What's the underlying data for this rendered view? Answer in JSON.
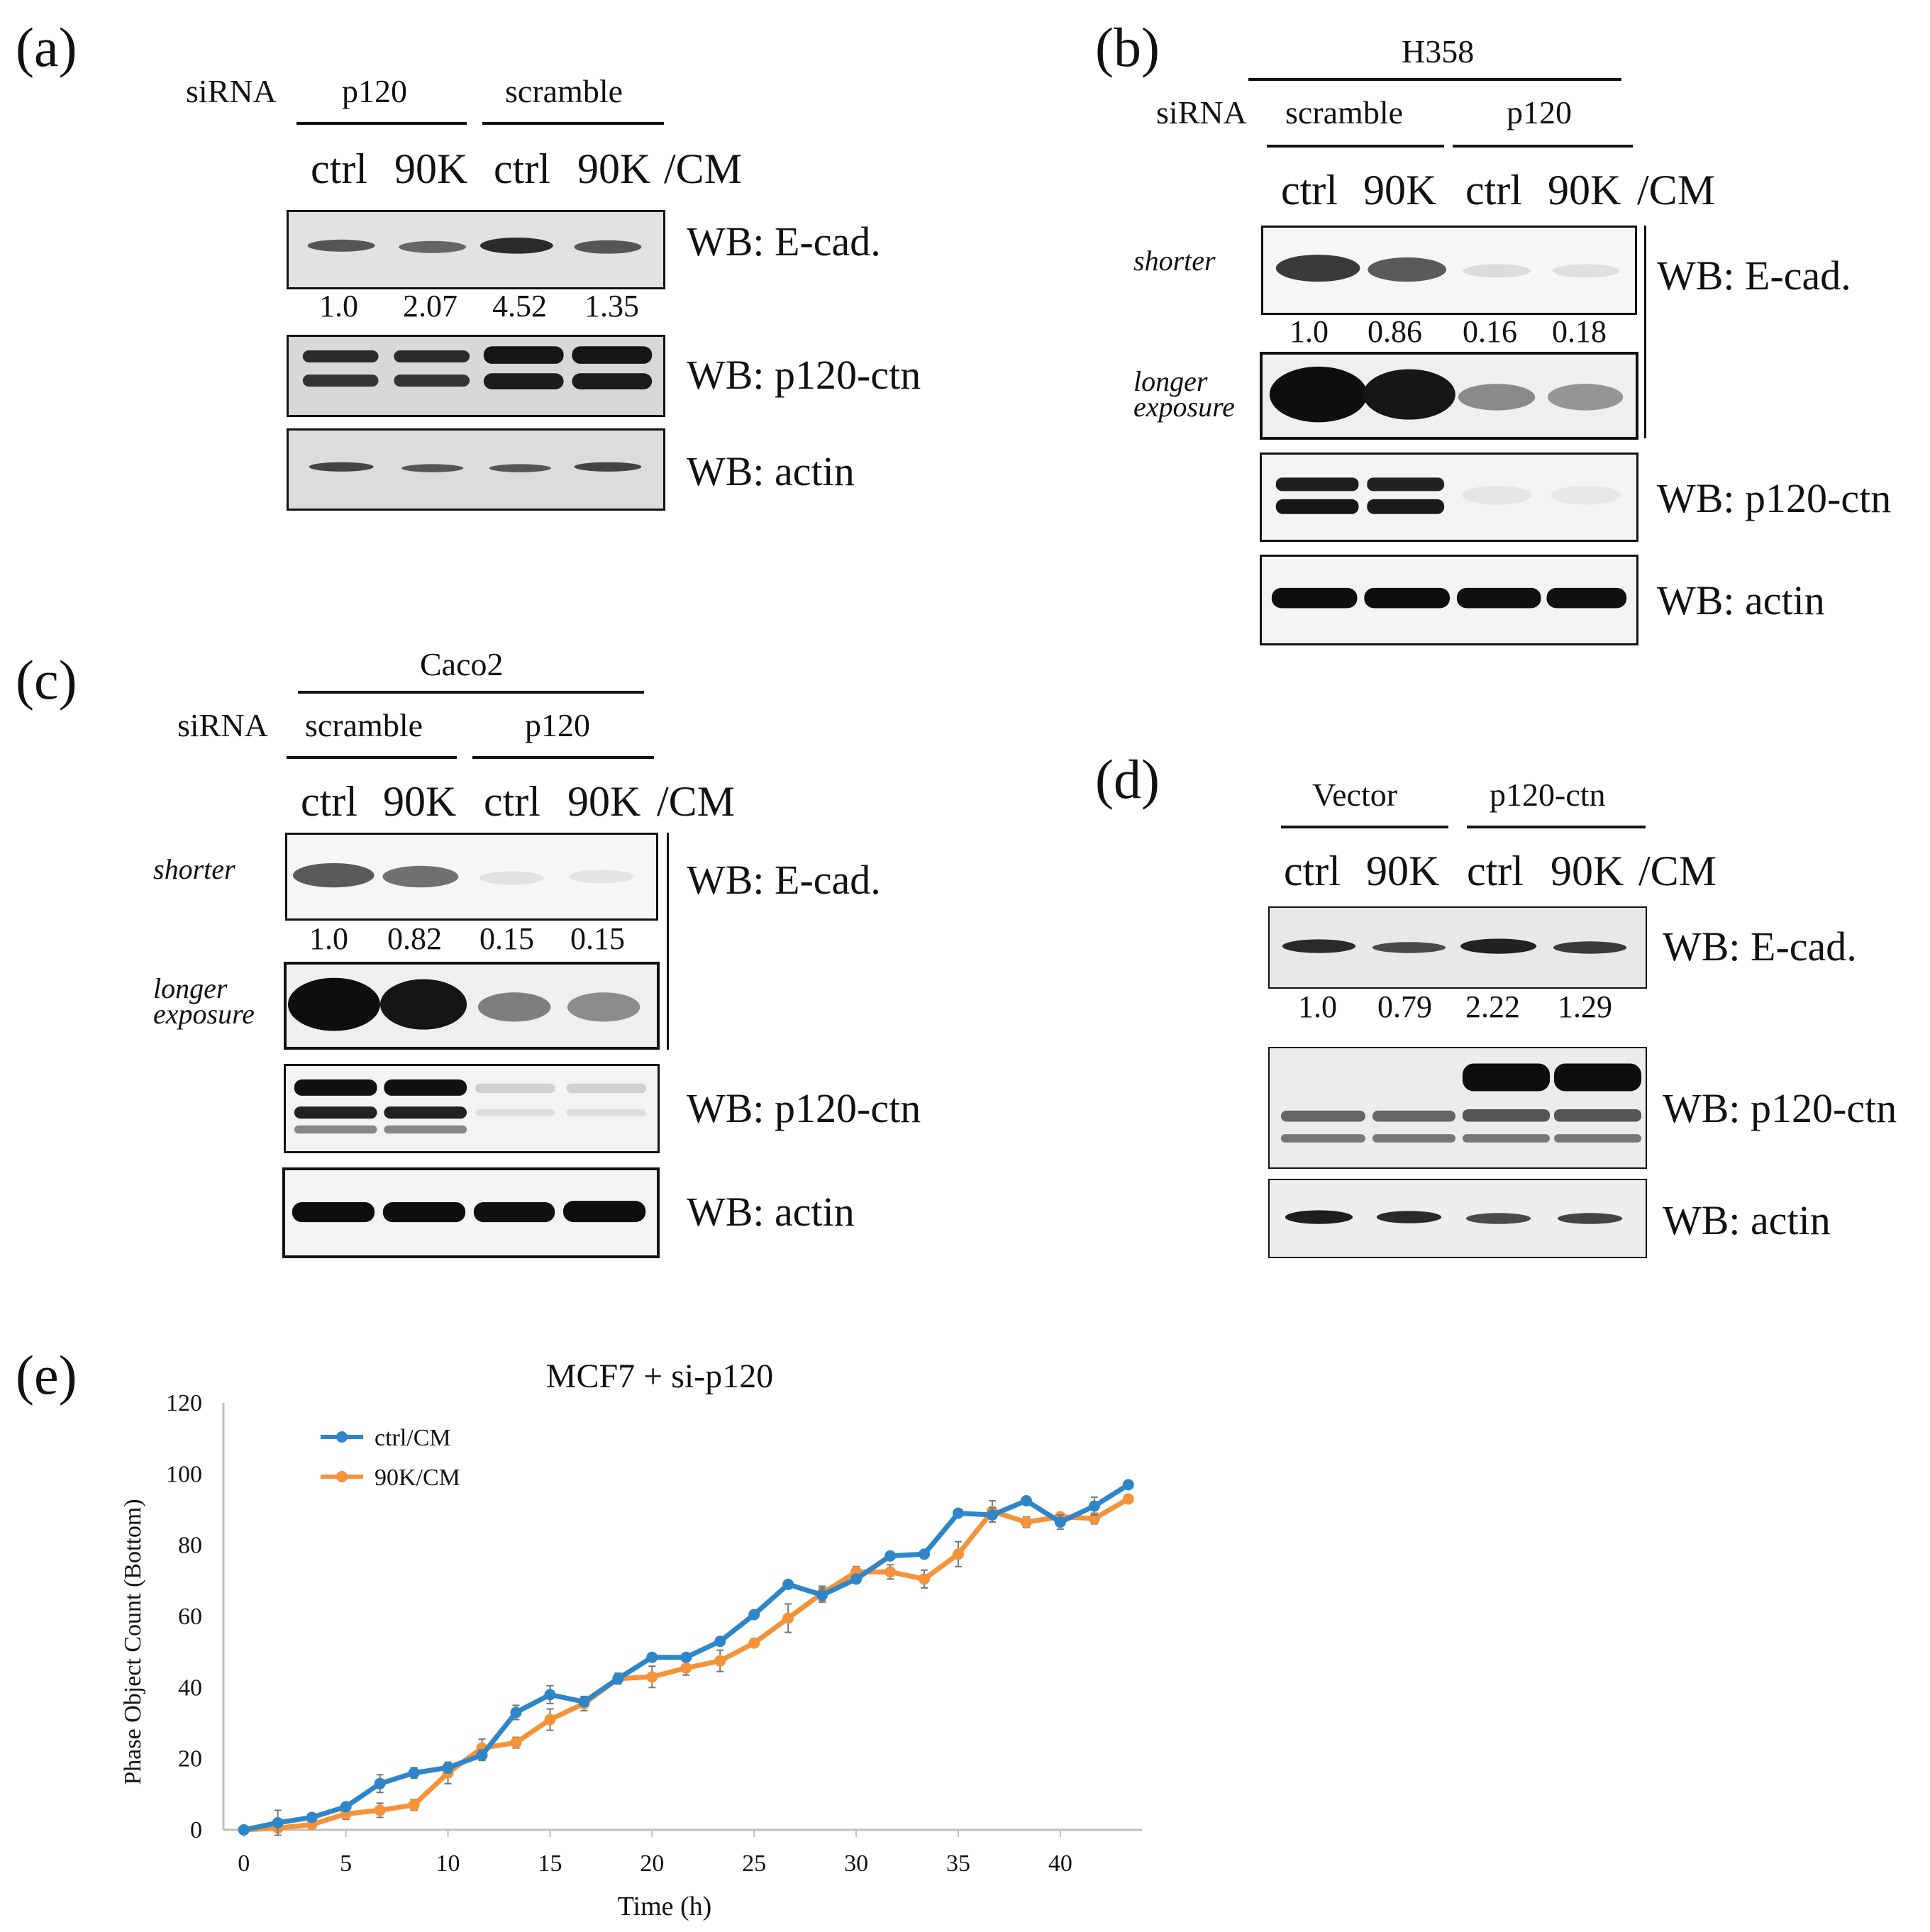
{
  "panels": {
    "a": {
      "label": "(a)",
      "sirna_label": "siRNA",
      "groups": [
        "p120",
        "scramble"
      ],
      "lanes": [
        "ctrl",
        "90K",
        "ctrl",
        "90K",
        "/CM"
      ],
      "blots": [
        {
          "label": "WB: E-cad.",
          "quant": [
            "1.0",
            "2.07",
            "4.52",
            "1.35"
          ]
        },
        {
          "label": "WB: p120-ctn"
        },
        {
          "label": "WB: actin"
        }
      ]
    },
    "b": {
      "label": "(b)",
      "cell_line": "H358",
      "sirna_label": "siRNA",
      "groups": [
        "scramble",
        "p120"
      ],
      "lanes": [
        "ctrl",
        "90K",
        "ctrl",
        "90K",
        "/CM"
      ],
      "exposure_short": "shorter",
      "exposure_long": [
        "longer",
        "exposure"
      ],
      "blots": [
        {
          "label": "WB: E-cad.",
          "quant": [
            "1.0",
            "0.86",
            "0.16",
            "0.18"
          ]
        },
        {
          "label": "WB: p120-ctn"
        },
        {
          "label": "WB: actin"
        }
      ]
    },
    "c": {
      "label": "(c)",
      "cell_line": "Caco2",
      "sirna_label": "siRNA",
      "groups": [
        "scramble",
        "p120"
      ],
      "lanes": [
        "ctrl",
        "90K",
        "ctrl",
        "90K",
        "/CM"
      ],
      "exposure_short": "shorter",
      "exposure_long": [
        "longer",
        "exposure"
      ],
      "blots": [
        {
          "label": "WB: E-cad.",
          "quant": [
            "1.0",
            "0.82",
            "0.15",
            "0.15"
          ]
        },
        {
          "label": "WB: p120-ctn"
        },
        {
          "label": "WB: actin"
        }
      ]
    },
    "d": {
      "label": "(d)",
      "groups": [
        "Vector",
        "p120-ctn"
      ],
      "lanes": [
        "ctrl",
        "90K",
        "ctrl",
        "90K",
        "/CM"
      ],
      "blots": [
        {
          "label": "WB: E-cad.",
          "quant": [
            "1.0",
            "0.79",
            "2.22",
            "1.29"
          ]
        },
        {
          "label": "WB: p120-ctn"
        },
        {
          "label": "WB: actin"
        }
      ]
    },
    "e": {
      "label": "(e)"
    }
  },
  "colors": {
    "ctrl": "#2e86c8",
    "k90": "#f5933a",
    "axis": "#bfbfbf"
  },
  "chart_data": {
    "type": "line",
    "title": "MCF7 + si-p120",
    "xlabel": "Time (h)",
    "ylabel": "Phase Object Count (Bottom)",
    "xlim": [
      -1,
      44
    ],
    "ylim": [
      0,
      120
    ],
    "xticks": [
      0,
      5,
      10,
      15,
      20,
      25,
      30,
      35,
      40
    ],
    "yticks": [
      0,
      20,
      40,
      60,
      80,
      100,
      120
    ],
    "legend_position": "top-left",
    "x": [
      0,
      1.667,
      3.333,
      5,
      6.667,
      8.333,
      10,
      11.667,
      13.333,
      15,
      16.667,
      18.333,
      20,
      21.667,
      23.333,
      25,
      26.667,
      28.333,
      30,
      31.667,
      33.333,
      35,
      36.667,
      38.333,
      40,
      41.667,
      43.333
    ],
    "series": [
      {
        "name": "ctrl/CM",
        "values": [
          0,
          2,
          3.5,
          6.5,
          13,
          16,
          17.5,
          21,
          33,
          38,
          36,
          42.5,
          48.5,
          48.5,
          53,
          60.5,
          69,
          66,
          70.5,
          77,
          77.5,
          89,
          88.5,
          92.5,
          86.5,
          91,
          97
        ],
        "errors": [
          1,
          3.5,
          1,
          1,
          2.5,
          1.5,
          1.5,
          1.5,
          2,
          2.5,
          1,
          1.5,
          1,
          1,
          1,
          1,
          1,
          2,
          1,
          1,
          1,
          1,
          2,
          1,
          2,
          2.5,
          1
        ]
      },
      {
        "name": "90K/CM",
        "values": [
          0,
          0.5,
          1.5,
          4.5,
          5.5,
          7,
          16,
          23,
          24.5,
          31,
          35.5,
          42.5,
          43,
          45.5,
          47.5,
          52.5,
          59.5,
          66.5,
          72.5,
          72.5,
          70.5,
          77.5,
          89.5,
          86.5,
          88,
          87.5,
          93
        ],
        "errors": [
          0.5,
          1,
          1,
          1.5,
          2,
          1.5,
          3,
          2.5,
          1.5,
          3,
          2,
          1.5,
          3,
          2,
          3,
          1,
          4,
          2,
          1.5,
          2,
          2.5,
          3.5,
          3,
          1.5,
          1,
          1.5,
          1
        ]
      }
    ]
  }
}
